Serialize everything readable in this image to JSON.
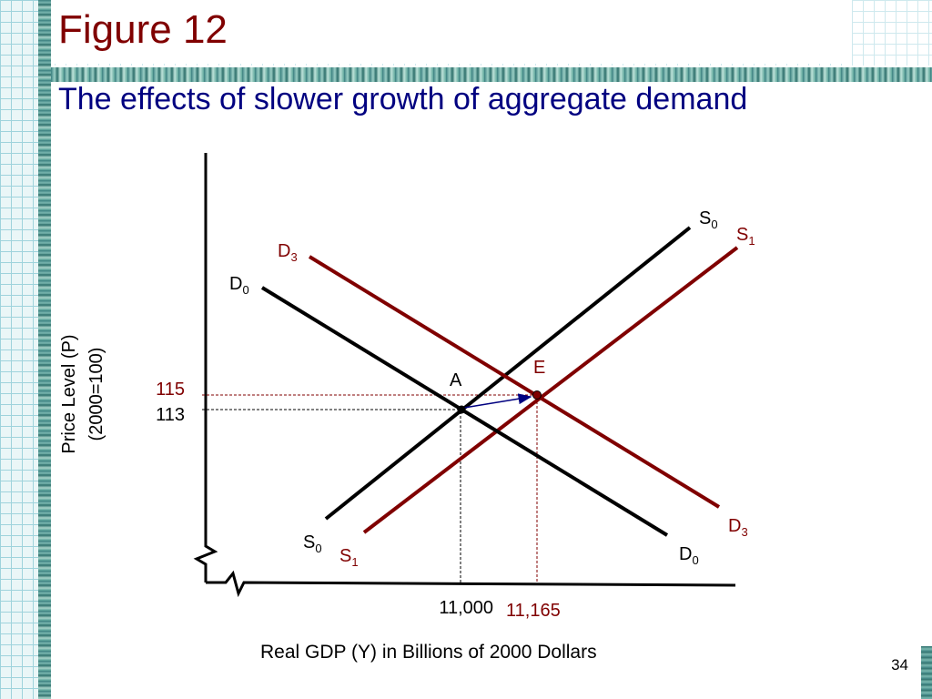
{
  "slide": {
    "figure_title": "Figure 12",
    "subtitle": "The effects of slower growth of aggregate demand",
    "page_number": "34",
    "y_axis_label_line1": "Price Level (P)",
    "y_axis_label_line2": "(2000=100)",
    "x_axis_label": "Real GDP (Y) in Billions of 2000 Dollars"
  },
  "colors": {
    "title": "#800000",
    "subtitle": "#000080",
    "original_curves": "#000000",
    "new_curves": "#800000",
    "arrow": "#000080"
  },
  "curve_labels": {
    "s0_top": "S",
    "s0_top_sub": "0",
    "s1_top": "S",
    "s1_top_sub": "1",
    "d3_top": "D",
    "d3_top_sub": "3",
    "d0_top": "D",
    "d0_top_sub": "0",
    "s0_bottom": "S",
    "s0_bottom_sub": "0",
    "s1_bottom": "S",
    "s1_bottom_sub": "1",
    "d3_bottom": "D",
    "d3_bottom_sub": "3",
    "d0_bottom": "D",
    "d0_bottom_sub": "0"
  },
  "points": {
    "a_label": "A",
    "e_label": "E"
  },
  "ticks": {
    "p_115": "115",
    "p_113": "113",
    "y_11000": "11,000",
    "y_11165": "11,165"
  }
}
